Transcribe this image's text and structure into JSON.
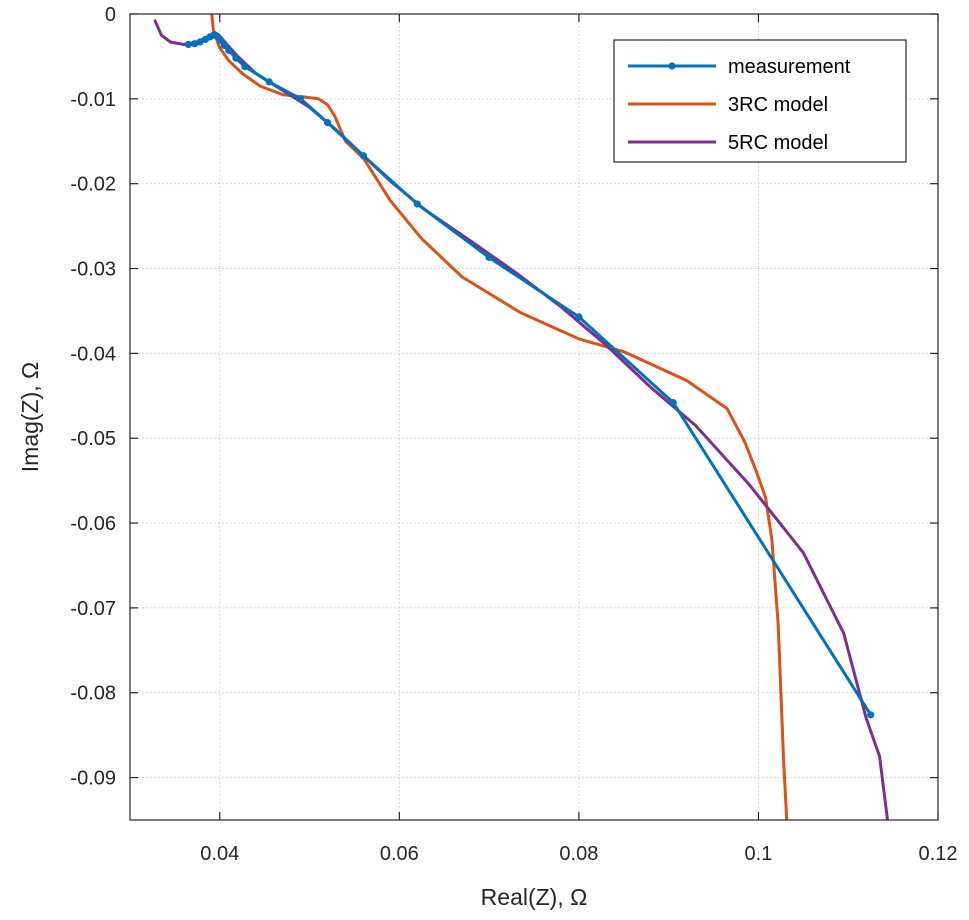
{
  "chart_data": {
    "type": "line",
    "xlabel": "Real(Z), Ω",
    "ylabel": "Imag(Z), Ω",
    "xlim": [
      0.03,
      0.12
    ],
    "ylim": [
      -0.095,
      0
    ],
    "xticks": [
      0.04,
      0.06,
      0.08,
      0.1,
      0.12
    ],
    "xtick_labels": [
      "0.04",
      "0.06",
      "0.08",
      "0.1",
      "0.12"
    ],
    "yticks": [
      0,
      -0.01,
      -0.02,
      -0.03,
      -0.04,
      -0.05,
      -0.06,
      -0.07,
      -0.08,
      -0.09
    ],
    "ytick_labels": [
      "0",
      "-0.01",
      "-0.02",
      "-0.03",
      "-0.04",
      "-0.05",
      "-0.06",
      "-0.07",
      "-0.08",
      "-0.09"
    ],
    "grid": true,
    "legend_position": "top-right",
    "series": [
      {
        "name": "measurement",
        "color": "#0072BD",
        "markers": true,
        "points": [
          [
            0.0365,
            -0.0036
          ],
          [
            0.0372,
            -0.0035
          ],
          [
            0.0378,
            -0.0033
          ],
          [
            0.0384,
            -0.003
          ],
          [
            0.0389,
            -0.0027
          ],
          [
            0.0393,
            -0.0025
          ],
          [
            0.0397,
            -0.0026
          ],
          [
            0.0401,
            -0.0031
          ],
          [
            0.0405,
            -0.0037
          ],
          [
            0.041,
            -0.0043
          ],
          [
            0.0418,
            -0.0052
          ],
          [
            0.0428,
            -0.0062
          ],
          [
            0.0455,
            -0.008
          ],
          [
            0.049,
            -0.01
          ],
          [
            0.052,
            -0.0128
          ],
          [
            0.056,
            -0.0167
          ],
          [
            0.062,
            -0.0224
          ],
          [
            0.07,
            -0.0287
          ],
          [
            0.08,
            -0.0357
          ],
          [
            0.0905,
            -0.0458
          ],
          [
            0.1125,
            -0.0826
          ]
        ]
      },
      {
        "name": "3RC model",
        "color": "#D95319",
        "markers": false,
        "points": [
          [
            0.039,
            0.001
          ],
          [
            0.0393,
            -0.002
          ],
          [
            0.04,
            -0.004
          ],
          [
            0.041,
            -0.0055
          ],
          [
            0.0425,
            -0.007
          ],
          [
            0.0445,
            -0.0085
          ],
          [
            0.047,
            -0.0095
          ],
          [
            0.0495,
            -0.0098
          ],
          [
            0.051,
            -0.01
          ],
          [
            0.052,
            -0.0107
          ],
          [
            0.0528,
            -0.012
          ],
          [
            0.054,
            -0.015
          ],
          [
            0.056,
            -0.017
          ],
          [
            0.059,
            -0.022
          ],
          [
            0.0625,
            -0.0265
          ],
          [
            0.067,
            -0.031
          ],
          [
            0.0735,
            -0.0352
          ],
          [
            0.08,
            -0.0383
          ],
          [
            0.085,
            -0.0398
          ],
          [
            0.092,
            -0.0432
          ],
          [
            0.0965,
            -0.0465
          ],
          [
            0.0985,
            -0.0505
          ],
          [
            0.0998,
            -0.054
          ],
          [
            0.1008,
            -0.057
          ],
          [
            0.1015,
            -0.062
          ],
          [
            0.1022,
            -0.072
          ],
          [
            0.1028,
            -0.088
          ],
          [
            0.1032,
            -0.096
          ]
        ]
      },
      {
        "name": "5RC model",
        "color": "#7E2F8E",
        "markers": false,
        "points": [
          [
            0.0328,
            -0.0008
          ],
          [
            0.0335,
            -0.0025
          ],
          [
            0.0345,
            -0.0033
          ],
          [
            0.036,
            -0.0036
          ],
          [
            0.0375,
            -0.0033
          ],
          [
            0.0388,
            -0.0026
          ],
          [
            0.0395,
            -0.0022
          ],
          [
            0.04,
            -0.0026
          ],
          [
            0.0408,
            -0.0036
          ],
          [
            0.042,
            -0.005
          ],
          [
            0.044,
            -0.007
          ],
          [
            0.047,
            -0.009
          ],
          [
            0.05,
            -0.011
          ],
          [
            0.053,
            -0.0137
          ],
          [
            0.056,
            -0.0167
          ],
          [
            0.059,
            -0.0197
          ],
          [
            0.063,
            -0.0232
          ],
          [
            0.068,
            -0.0268
          ],
          [
            0.073,
            -0.0305
          ],
          [
            0.078,
            -0.0345
          ],
          [
            0.083,
            -0.039
          ],
          [
            0.088,
            -0.044
          ],
          [
            0.093,
            -0.0485
          ],
          [
            0.099,
            -0.0555
          ],
          [
            0.105,
            -0.0635
          ],
          [
            0.1095,
            -0.073
          ],
          [
            0.112,
            -0.083
          ],
          [
            0.1135,
            -0.0875
          ],
          [
            0.1145,
            -0.096
          ]
        ]
      }
    ]
  }
}
